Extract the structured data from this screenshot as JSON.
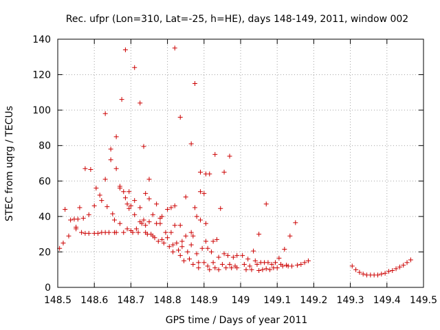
{
  "chart_data": {
    "type": "scatter",
    "title": "Rec. ufpr (Lon=310, Lat=-25, h=HE), days 148-149, 2011, window 002",
    "xlabel": "GPS time / Days of year 2011",
    "ylabel": "STEC from uqrg / TECUs",
    "xlim": [
      148.5,
      149.5
    ],
    "ylim": [
      0,
      140
    ],
    "xticks": [
      148.5,
      148.6,
      148.7,
      148.8,
      148.9,
      149.0,
      149.1,
      149.2,
      149.3,
      149.4,
      149.5
    ],
    "xtick_labels": [
      "148.5",
      "148.6",
      "148.7",
      "148.8",
      "148.9",
      "149",
      "149.1",
      "149.2",
      "149.3",
      "149.4",
      "149.5"
    ],
    "yticks": [
      0,
      20,
      40,
      60,
      80,
      100,
      120,
      140
    ],
    "ytick_labels": [
      "0",
      "20",
      "40",
      "60",
      "80",
      "100",
      "120",
      "140"
    ],
    "grid": true,
    "marker": "+",
    "color": "#cc0000",
    "points": [
      [
        148.505,
        22
      ],
      [
        148.515,
        25
      ],
      [
        148.52,
        44
      ],
      [
        148.53,
        29
      ],
      [
        148.535,
        38
      ],
      [
        148.545,
        38.5
      ],
      [
        148.55,
        34
      ],
      [
        148.555,
        38.5
      ],
      [
        148.55,
        33
      ],
      [
        148.56,
        45
      ],
      [
        148.565,
        31
      ],
      [
        148.57,
        39
      ],
      [
        148.575,
        30.5
      ],
      [
        148.575,
        67
      ],
      [
        148.585,
        30.5
      ],
      [
        148.59,
        66.5
      ],
      [
        148.585,
        41
      ],
      [
        148.6,
        30.5
      ],
      [
        148.6,
        46
      ],
      [
        148.605,
        56
      ],
      [
        148.61,
        30.5
      ],
      [
        148.615,
        52
      ],
      [
        148.62,
        31
      ],
      [
        148.62,
        49
      ],
      [
        148.63,
        31
      ],
      [
        148.63,
        98
      ],
      [
        148.63,
        61
      ],
      [
        148.635,
        45.5
      ],
      [
        148.64,
        31
      ],
      [
        148.645,
        72
      ],
      [
        148.645,
        78
      ],
      [
        148.65,
        41.5
      ],
      [
        148.655,
        31
      ],
      [
        148.655,
        38
      ],
      [
        148.66,
        85
      ],
      [
        148.66,
        67
      ],
      [
        148.66,
        31
      ],
      [
        148.67,
        56
      ],
      [
        148.67,
        57
      ],
      [
        148.67,
        36
      ],
      [
        148.675,
        106
      ],
      [
        148.68,
        31
      ],
      [
        148.685,
        134
      ],
      [
        148.68,
        54
      ],
      [
        148.685,
        50.5
      ],
      [
        148.69,
        47
      ],
      [
        148.69,
        33
      ],
      [
        148.695,
        54
      ],
      [
        148.695,
        44.5
      ],
      [
        148.7,
        46
      ],
      [
        148.7,
        32
      ],
      [
        148.705,
        31
      ],
      [
        148.71,
        124
      ],
      [
        148.71,
        49
      ],
      [
        148.71,
        41
      ],
      [
        148.715,
        33
      ],
      [
        148.72,
        31
      ],
      [
        148.725,
        104
      ],
      [
        148.725,
        45
      ],
      [
        148.725,
        37
      ],
      [
        148.73,
        36
      ],
      [
        148.735,
        79.5
      ],
      [
        148.735,
        38
      ],
      [
        148.74,
        53
      ],
      [
        148.74,
        31
      ],
      [
        148.74,
        35
      ],
      [
        148.745,
        30
      ],
      [
        148.75,
        61
      ],
      [
        148.75,
        50
      ],
      [
        148.75,
        37
      ],
      [
        148.755,
        30
      ],
      [
        148.76,
        29
      ],
      [
        148.76,
        41
      ],
      [
        148.765,
        28
      ],
      [
        148.77,
        47
      ],
      [
        148.77,
        36
      ],
      [
        148.775,
        26
      ],
      [
        148.78,
        36
      ],
      [
        148.78,
        39
      ],
      [
        148.785,
        27
      ],
      [
        148.785,
        40
      ],
      [
        148.79,
        25
      ],
      [
        148.795,
        31
      ],
      [
        148.8,
        28
      ],
      [
        148.8,
        44
      ],
      [
        148.805,
        23
      ],
      [
        148.81,
        31
      ],
      [
        148.81,
        45
      ],
      [
        148.815,
        24
      ],
      [
        148.815,
        20
      ],
      [
        148.82,
        135
      ],
      [
        148.82,
        46
      ],
      [
        148.82,
        35
      ],
      [
        148.825,
        25
      ],
      [
        148.83,
        21
      ],
      [
        148.835,
        96
      ],
      [
        148.835,
        35
      ],
      [
        148.835,
        18
      ],
      [
        148.84,
        26
      ],
      [
        148.84,
        23
      ],
      [
        148.845,
        15
      ],
      [
        148.85,
        51
      ],
      [
        148.85,
        29
      ],
      [
        148.855,
        20
      ],
      [
        148.86,
        16
      ],
      [
        148.865,
        81
      ],
      [
        148.865,
        31
      ],
      [
        148.865,
        24
      ],
      [
        148.87,
        13
      ],
      [
        148.87,
        29
      ],
      [
        148.875,
        45
      ],
      [
        148.875,
        115
      ],
      [
        148.88,
        40
      ],
      [
        148.88,
        19
      ],
      [
        148.885,
        14
      ],
      [
        148.885,
        11
      ],
      [
        148.89,
        65
      ],
      [
        148.89,
        54
      ],
      [
        148.89,
        38
      ],
      [
        148.895,
        22
      ],
      [
        148.9,
        14
      ],
      [
        148.9,
        53
      ],
      [
        148.905,
        64
      ],
      [
        148.905,
        36
      ],
      [
        148.905,
        26
      ],
      [
        148.91,
        12
      ],
      [
        148.91,
        22
      ],
      [
        148.915,
        64
      ],
      [
        148.915,
        10
      ],
      [
        148.92,
        20
      ],
      [
        148.925,
        14
      ],
      [
        148.925,
        26
      ],
      [
        148.93,
        75
      ],
      [
        148.93,
        11
      ],
      [
        148.935,
        27
      ],
      [
        148.94,
        17
      ],
      [
        148.94,
        10
      ],
      [
        148.945,
        44.5
      ],
      [
        148.95,
        13
      ],
      [
        148.955,
        65
      ],
      [
        148.955,
        19
      ],
      [
        148.96,
        11
      ],
      [
        148.965,
        18
      ],
      [
        148.97,
        74
      ],
      [
        148.97,
        13
      ],
      [
        148.975,
        11
      ],
      [
        148.98,
        17
      ],
      [
        148.985,
        12
      ],
      [
        148.99,
        18
      ],
      [
        148.99,
        11
      ],
      [
        149.005,
        18
      ],
      [
        149.01,
        13
      ],
      [
        149.015,
        10
      ],
      [
        149.02,
        16
      ],
      [
        149.025,
        12
      ],
      [
        149.03,
        10
      ],
      [
        149.035,
        20.5
      ],
      [
        149.04,
        15
      ],
      [
        149.045,
        13
      ],
      [
        149.05,
        9.5
      ],
      [
        149.05,
        30
      ],
      [
        149.055,
        14
      ],
      [
        149.06,
        10
      ],
      [
        149.065,
        14
      ],
      [
        149.07,
        47
      ],
      [
        149.07,
        10.5
      ],
      [
        149.075,
        14
      ],
      [
        149.08,
        10
      ],
      [
        149.085,
        13
      ],
      [
        149.09,
        11
      ],
      [
        149.095,
        14
      ],
      [
        149.1,
        11
      ],
      [
        149.105,
        16.5
      ],
      [
        149.11,
        13
      ],
      [
        149.115,
        12
      ],
      [
        149.12,
        21.5
      ],
      [
        149.125,
        12.5
      ],
      [
        149.13,
        12
      ],
      [
        149.135,
        29
      ],
      [
        149.14,
        12
      ],
      [
        149.15,
        36.5
      ],
      [
        149.155,
        12.5
      ],
      [
        149.165,
        13
      ],
      [
        149.175,
        14
      ],
      [
        149.185,
        15
      ],
      [
        149.305,
        12
      ],
      [
        149.315,
        10
      ],
      [
        149.325,
        8.5
      ],
      [
        149.335,
        7.5
      ],
      [
        149.345,
        7
      ],
      [
        149.355,
        7
      ],
      [
        149.365,
        7
      ],
      [
        149.375,
        7
      ],
      [
        149.385,
        7.5
      ],
      [
        149.395,
        8
      ],
      [
        149.405,
        9
      ],
      [
        149.415,
        9.5
      ],
      [
        149.425,
        10.5
      ],
      [
        149.435,
        11.5
      ],
      [
        149.445,
        12.5
      ],
      [
        149.455,
        14
      ],
      [
        149.465,
        15.5
      ]
    ]
  }
}
